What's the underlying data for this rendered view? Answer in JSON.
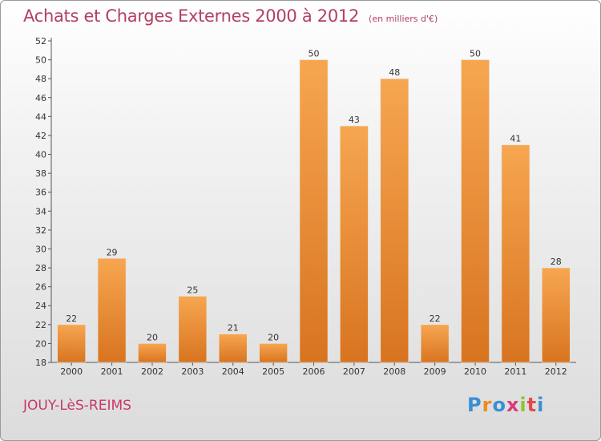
{
  "title": "Achats et Charges Externes 2000 à 2012",
  "subtitle": "(en milliers d'€)",
  "place_name": "JOUY-LèS-REIMS",
  "logo": {
    "text": "Proxiti",
    "letter_colors": [
      "#3a8fd6",
      "#f08c1c",
      "#3a8fd6",
      "#d93a7a",
      "#8cc43c",
      "#e24a4a",
      "#3a8fd6"
    ]
  },
  "colors": {
    "bar_light": "#f7a650",
    "bar_dark": "#d87420",
    "title": "#b24060",
    "axis": "#555555"
  },
  "chart_data": {
    "type": "bar",
    "title": "Achats et Charges Externes 2000 à 2012",
    "subtitle": "(en milliers d'€)",
    "categories": [
      "2000",
      "2001",
      "2002",
      "2003",
      "2004",
      "2005",
      "2006",
      "2007",
      "2008",
      "2009",
      "2010",
      "2011",
      "2012"
    ],
    "values": [
      22,
      29,
      20,
      25,
      21,
      20,
      50,
      43,
      48,
      22,
      50,
      41,
      28
    ],
    "ylim": [
      18,
      52
    ],
    "yticks": [
      18,
      20,
      22,
      24,
      26,
      28,
      30,
      32,
      34,
      36,
      38,
      40,
      42,
      44,
      46,
      48,
      50,
      52
    ],
    "grid": false,
    "data_labels": true
  }
}
